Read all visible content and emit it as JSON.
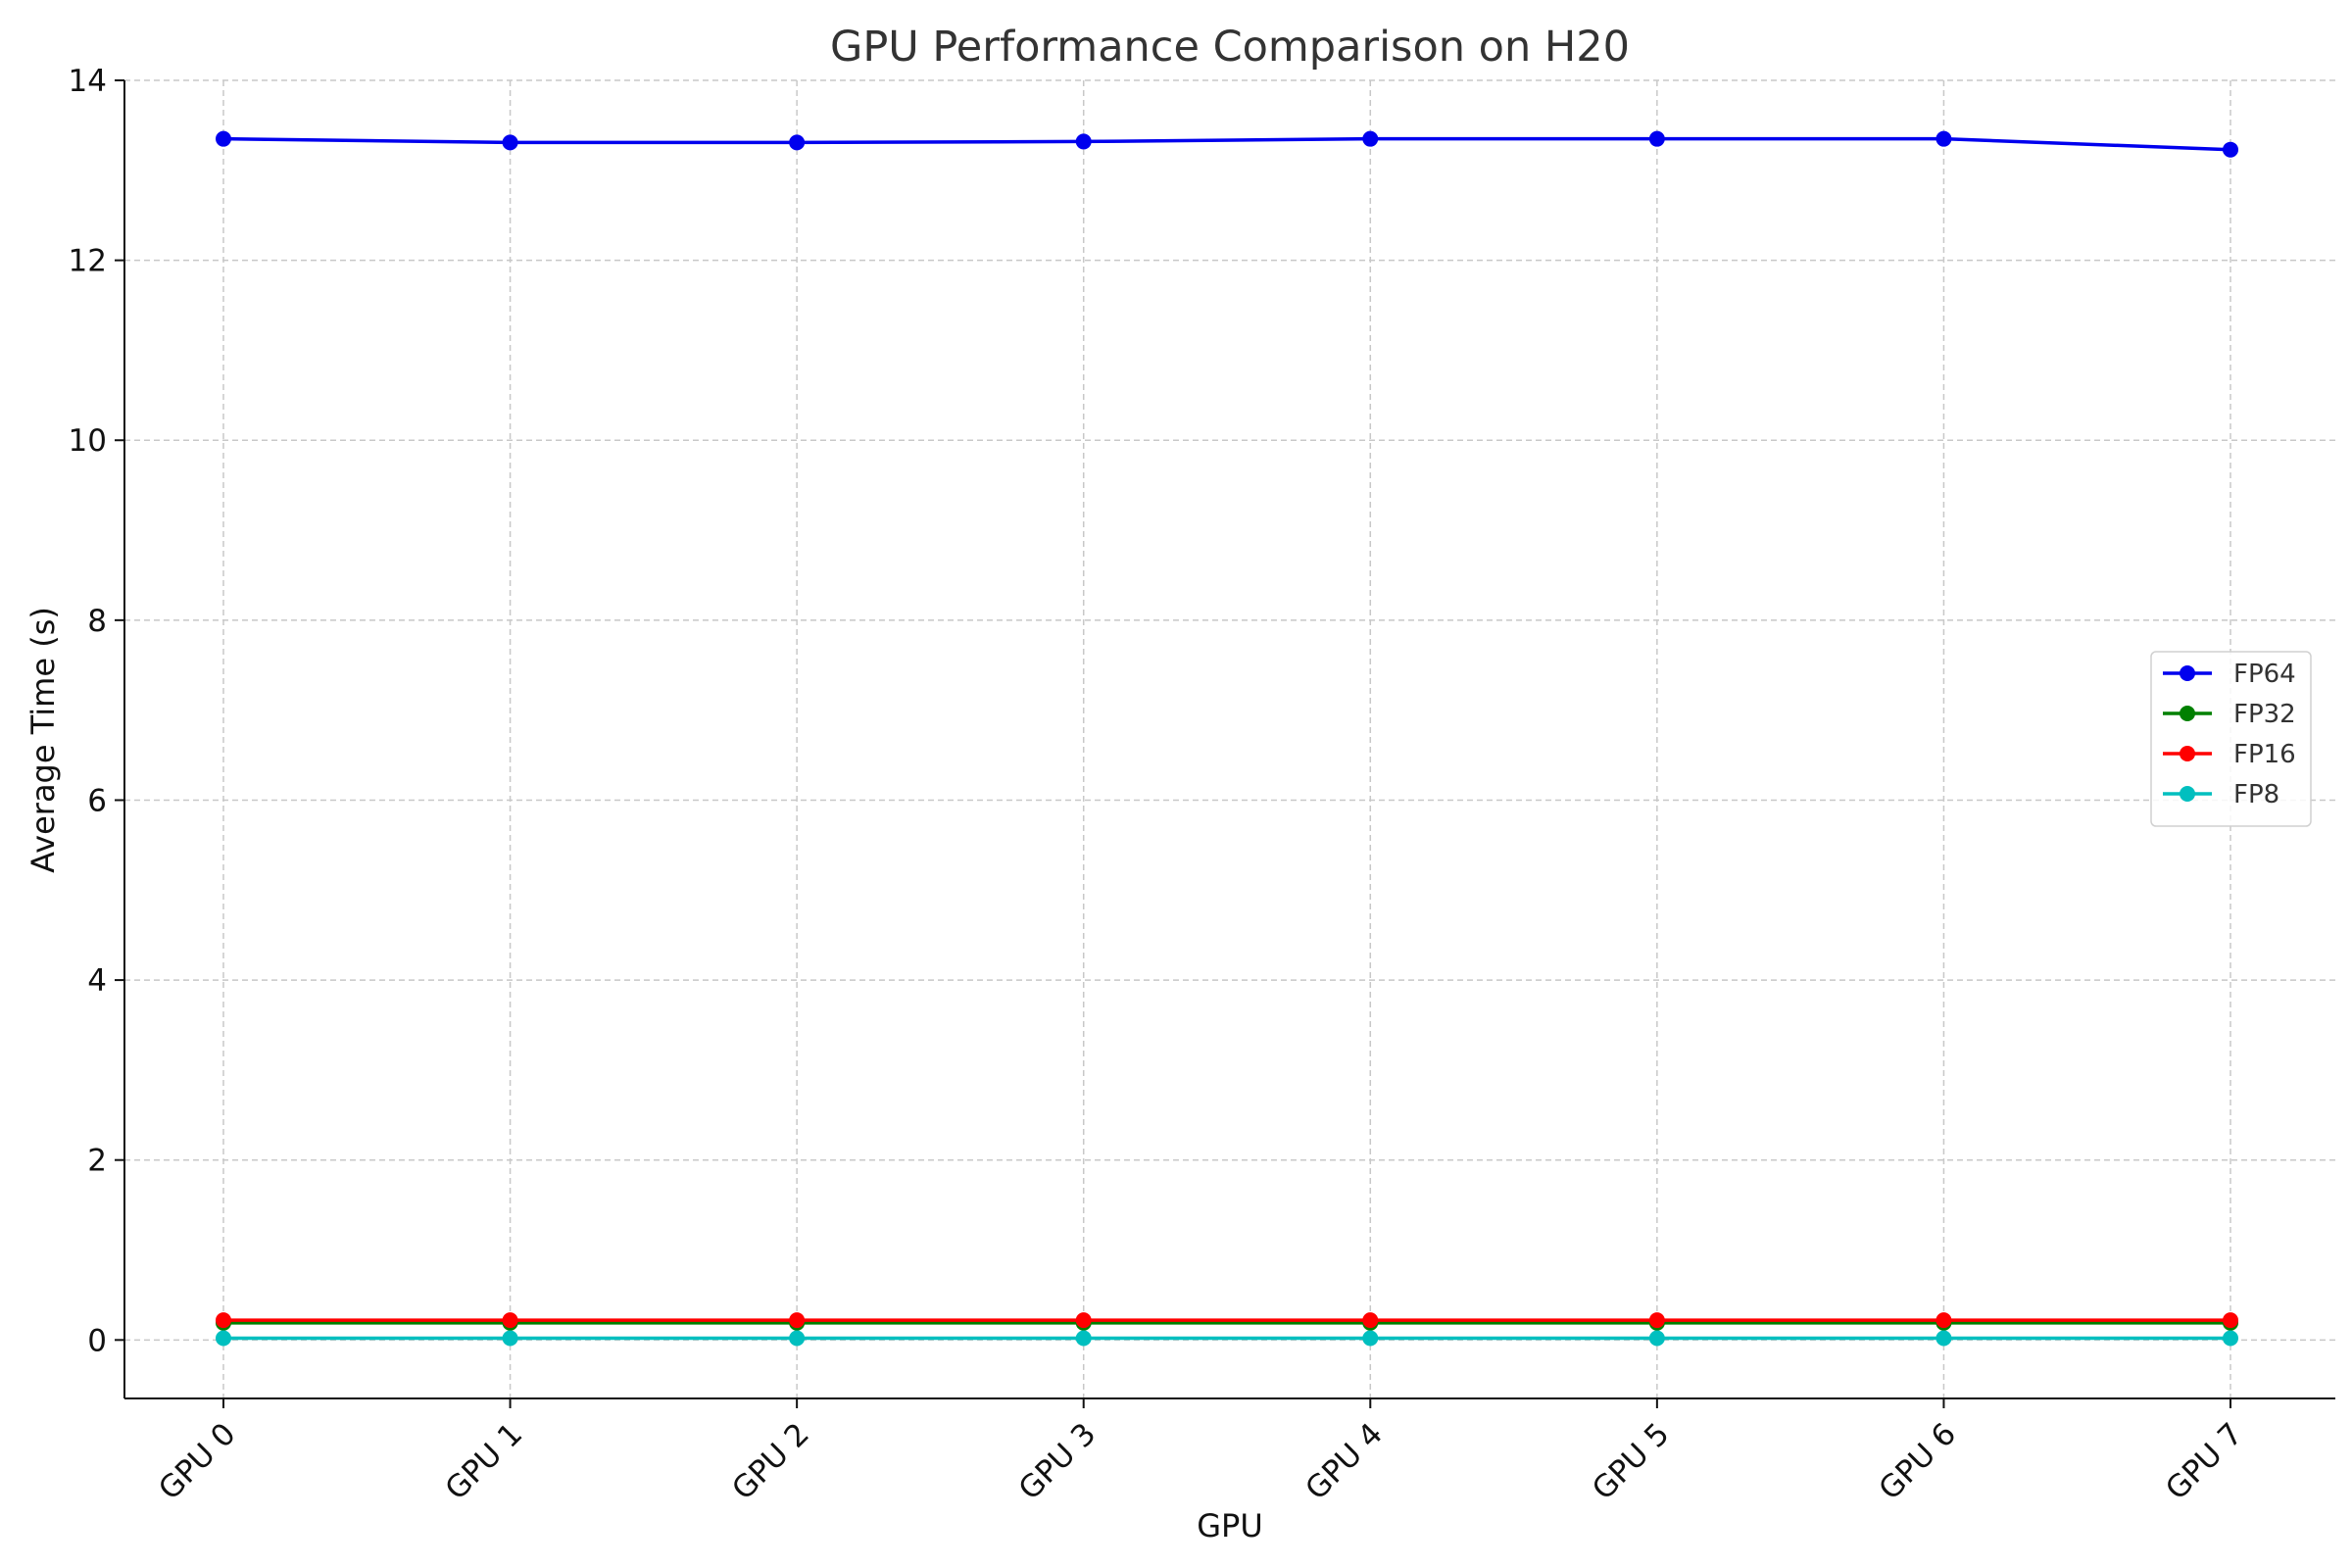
{
  "chart_data": {
    "type": "line",
    "title": "GPU Performance Comparison on H20",
    "xlabel": "GPU",
    "ylabel": "Average Time (s)",
    "categories": [
      "GPU 0",
      "GPU 1",
      "GPU 2",
      "GPU 3",
      "GPU 4",
      "GPU 5",
      "GPU 6",
      "GPU 7"
    ],
    "ylim": [
      -0.65,
      14
    ],
    "yticks": [
      0,
      2,
      4,
      6,
      8,
      10,
      12,
      14
    ],
    "grid": true,
    "legend_position": "center-right",
    "series": [
      {
        "name": "FP64",
        "color": "#0000ee",
        "values": [
          13.35,
          13.31,
          13.31,
          13.32,
          13.35,
          13.35,
          13.35,
          13.23
        ]
      },
      {
        "name": "FP32",
        "color": "#008000",
        "values": [
          0.19,
          0.19,
          0.19,
          0.19,
          0.19,
          0.19,
          0.19,
          0.19
        ]
      },
      {
        "name": "FP16",
        "color": "#ff0000",
        "values": [
          0.22,
          0.22,
          0.22,
          0.22,
          0.22,
          0.22,
          0.22,
          0.22
        ]
      },
      {
        "name": "FP8",
        "color": "#00bfbf",
        "values": [
          0.02,
          0.02,
          0.02,
          0.02,
          0.02,
          0.02,
          0.02,
          0.02
        ]
      }
    ]
  }
}
